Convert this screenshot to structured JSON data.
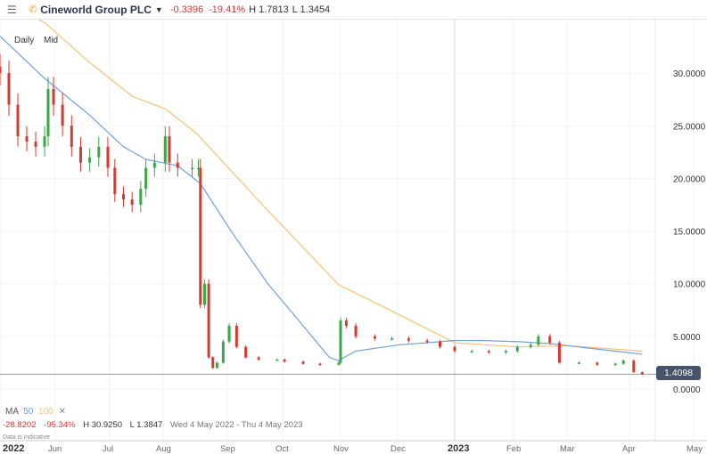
{
  "header": {
    "menu_icon": "hamburger-icon",
    "alert_icon": "phone-icon",
    "instrument": "Cineworld Group PLC",
    "change": "-0.3396",
    "change_pct": "-19.41%",
    "high": "H 1.7813",
    "low": "L 1.3454"
  },
  "controls": {
    "interval": "Daily",
    "price_type": "Mid"
  },
  "legend": {
    "label": "MA",
    "ma50": "50",
    "ma100": "100",
    "close": "✕"
  },
  "stats": {
    "change": "-28.8202",
    "change_pct": "-95.34%",
    "high": "H 30.9250",
    "low": "L 1.3847",
    "range": "Wed 4 May 2022 - Thu 4 May 2023"
  },
  "note": "Data is indicative",
  "last_price": "1.4098",
  "colors": {
    "up": "#3aa847",
    "down": "#d63a2f",
    "ma50": "#6fa0dc",
    "ma100": "#f5c272",
    "price_tag": "#46536b"
  },
  "chart_data": {
    "type": "candlestick",
    "ylim": [
      -1.5,
      37
    ],
    "yticks": [
      "0.0000",
      "5.0000",
      "10.0000",
      "15.0000",
      "20.0000",
      "25.0000",
      "30.0000"
    ],
    "xticks": [
      "2022",
      "Jun",
      "Jul",
      "Aug",
      "Sep",
      "Oct",
      "Nov",
      "Dec",
      "2023",
      "Feb",
      "Mar",
      "Apr",
      "May"
    ],
    "grid": true,
    "closes": [
      [
        "2022-05-01",
        30
      ],
      [
        "2022-05-06",
        27
      ],
      [
        "2022-05-11",
        24
      ],
      [
        "2022-05-16",
        23.5
      ],
      [
        "2022-05-21",
        23
      ],
      [
        "2022-05-26",
        24
      ],
      [
        "2022-05-28",
        28.5
      ],
      [
        "2022-05-31",
        27
      ],
      [
        "2022-06-05",
        25
      ],
      [
        "2022-06-10",
        23
      ],
      [
        "2022-06-15",
        21.5
      ],
      [
        "2022-06-20",
        22
      ],
      [
        "2022-06-25",
        23
      ],
      [
        "2022-06-30",
        21
      ],
      [
        "2022-07-04",
        18.5
      ],
      [
        "2022-07-09",
        18
      ],
      [
        "2022-07-14",
        17.5
      ],
      [
        "2022-07-19",
        19
      ],
      [
        "2022-07-22",
        21
      ],
      [
        "2022-07-27",
        21.5
      ],
      [
        "2022-08-02",
        24
      ],
      [
        "2022-08-04",
        21.5
      ],
      [
        "2022-08-08",
        21
      ],
      [
        "2022-08-15",
        21
      ],
      [
        "2022-08-18",
        21
      ],
      [
        "2022-08-19",
        8
      ],
      [
        "2022-08-21",
        10
      ],
      [
        "2022-08-23",
        3
      ],
      [
        "2022-08-25",
        2
      ],
      [
        "2022-08-27",
        2.5
      ],
      [
        "2022-08-30",
        4.5
      ],
      [
        "2022-09-02",
        6
      ],
      [
        "2022-09-06",
        4
      ],
      [
        "2022-09-11",
        3
      ],
      [
        "2022-09-18",
        2.8
      ],
      [
        "2022-09-28",
        2.8
      ],
      [
        "2022-10-02",
        2.6
      ],
      [
        "2022-10-12",
        2.4
      ],
      [
        "2022-10-21",
        2.3
      ],
      [
        "2022-10-31",
        2.5
      ],
      [
        "2022-11-01",
        6.5
      ],
      [
        "2022-11-04",
        6
      ],
      [
        "2022-11-09",
        5
      ],
      [
        "2022-11-19",
        4.8
      ],
      [
        "2022-11-28",
        4.8
      ],
      [
        "2022-12-07",
        4.6
      ],
      [
        "2022-12-17",
        4.5
      ],
      [
        "2022-12-24",
        4
      ],
      [
        "2023-01-01",
        3.6
      ],
      [
        "2023-01-10",
        3.6
      ],
      [
        "2023-01-19",
        3.5
      ],
      [
        "2023-01-28",
        3.6
      ],
      [
        "2023-02-03",
        4
      ],
      [
        "2023-02-10",
        4.2
      ],
      [
        "2023-02-14",
        5
      ],
      [
        "2023-02-20",
        4.4
      ],
      [
        "2023-02-25",
        2.5
      ],
      [
        "2023-03-07",
        2.5
      ],
      [
        "2023-03-16",
        2.3
      ],
      [
        "2023-03-25",
        2.4
      ],
      [
        "2023-03-29",
        2.7
      ],
      [
        "2023-04-03",
        1.6
      ],
      [
        "2023-04-07",
        1.41
      ]
    ],
    "ma50": [
      [
        "2022-05-01",
        33.5
      ],
      [
        "2022-05-26",
        29.5
      ],
      [
        "2022-06-20",
        26
      ],
      [
        "2022-07-09",
        23
      ],
      [
        "2022-07-22",
        21.8
      ],
      [
        "2022-08-08",
        21.2
      ],
      [
        "2022-08-19",
        19.5
      ],
      [
        "2022-09-03",
        15
      ],
      [
        "2022-09-23",
        10
      ],
      [
        "2022-10-12",
        6
      ],
      [
        "2022-10-26",
        3
      ],
      [
        "2022-10-31",
        2.7
      ],
      [
        "2022-11-09",
        3.6
      ],
      [
        "2022-12-02",
        4.2
      ],
      [
        "2023-01-01",
        4.6
      ],
      [
        "2023-01-15",
        4.6
      ],
      [
        "2023-02-03",
        4.5
      ],
      [
        "2023-02-21",
        4.3
      ],
      [
        "2023-03-11",
        3.9
      ],
      [
        "2023-04-07",
        3.3
      ]
    ],
    "ma100": [
      [
        "2022-05-01",
        37
      ],
      [
        "2022-05-26",
        34.8
      ],
      [
        "2022-06-20",
        31
      ],
      [
        "2022-07-14",
        27.8
      ],
      [
        "2022-08-02",
        26.6
      ],
      [
        "2022-08-17",
        24.3
      ],
      [
        "2022-09-20",
        17.5
      ],
      [
        "2022-10-31",
        9.9
      ],
      [
        "2022-11-28",
        7.4
      ],
      [
        "2023-01-01",
        4.4
      ],
      [
        "2023-02-03",
        4
      ],
      [
        "2023-03-02",
        4.1
      ],
      [
        "2023-04-07",
        3.6
      ]
    ],
    "last": 1.4098
  }
}
